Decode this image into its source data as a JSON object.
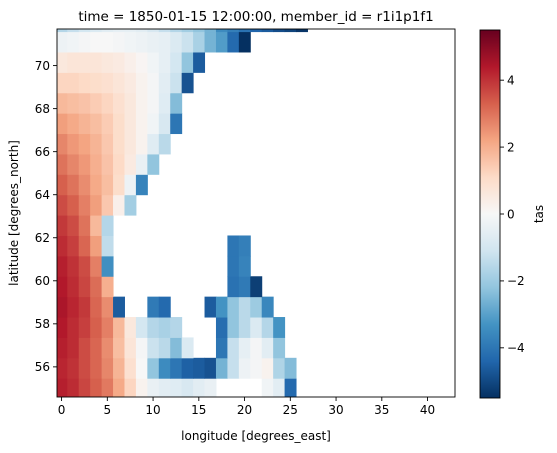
{
  "chart_data": {
    "type": "heatmap",
    "title": "time = 1850-01-15 12:00:00, member_id = r1i1p1f1",
    "xlabel": "longitude [degrees_east]",
    "ylabel": "latitude [degrees_north]",
    "colorbar_label": "tas",
    "colormap": "RdBu_r",
    "vmin": -5.5,
    "vmax": 5.5,
    "x_range": [
      -0.5,
      43.0
    ],
    "y_range": [
      54.6,
      71.7
    ],
    "x_ticks": [
      0,
      5,
      10,
      15,
      20,
      25,
      30,
      35,
      40
    ],
    "x_tick_labels": [
      "0",
      "5",
      "10",
      "15",
      "20",
      "25",
      "30",
      "35",
      "40"
    ],
    "y_ticks": [
      56,
      58,
      60,
      62,
      64,
      66,
      68,
      70
    ],
    "y_tick_labels": [
      "56",
      "58",
      "60",
      "62",
      "64",
      "66",
      "68",
      "70"
    ],
    "colorbar_ticks": [
      -4,
      -2,
      0,
      2,
      4
    ],
    "colorbar_tick_labels": [
      "−4",
      "−2",
      "0",
      "2",
      "4"
    ],
    "grid": false,
    "cell_width_deg": 1.25,
    "cell_height_deg": 0.9474,
    "lon_start": 0,
    "lat_start": 55.0,
    "rows": [
      [
        4.3,
        4.1,
        3.7,
        3.3,
        2.9,
        2.1,
        1.2,
        0.2,
        -0.4,
        -0.6,
        -0.7,
        -0.9,
        -0.6,
        -0.4,
        null,
        null,
        null,
        null,
        -0.2,
        -0.6,
        -4.3,
        null
      ],
      [
        4.2,
        4.0,
        3.6,
        3.2,
        2.7,
        1.9,
        0.9,
        0.0,
        -2.2,
        -3.5,
        -4.0,
        -4.5,
        -4.6,
        -4.8,
        -2.6,
        -1.3,
        -0.3,
        -0.1,
        0.2,
        -1.7,
        -2.4,
        null
      ],
      [
        4.3,
        4.1,
        3.6,
        3.2,
        2.6,
        1.7,
        0.7,
        -0.1,
        -1.2,
        -1.5,
        -2.4,
        -0.8,
        null,
        null,
        -4.0,
        -1.3,
        -0.5,
        -0.1,
        -0.6,
        -2.2,
        null,
        null
      ],
      [
        4.4,
        4.1,
        3.8,
        3.3,
        2.8,
        1.8,
        0.6,
        -1.0,
        -1.6,
        -1.8,
        -1.6,
        null,
        null,
        null,
        -4.2,
        -2.2,
        -1.5,
        -0.8,
        -1.6,
        -3.3,
        null,
        null
      ],
      [
        4.5,
        4.2,
        3.9,
        3.2,
        2.6,
        -4.6,
        null,
        null,
        -3.9,
        -4.3,
        null,
        null,
        null,
        -4.6,
        -3.3,
        -2.2,
        -1.5,
        -2.0,
        -3.6,
        null,
        null,
        null
      ],
      [
        4.4,
        4.1,
        3.7,
        3.1,
        2.0,
        null,
        null,
        null,
        null,
        null,
        null,
        null,
        null,
        null,
        null,
        -4.1,
        -3.9,
        -5.2,
        null,
        null,
        null,
        null
      ],
      [
        4.3,
        4.0,
        3.6,
        2.8,
        -3.4,
        null,
        null,
        null,
        null,
        null,
        null,
        null,
        null,
        null,
        null,
        -4.0,
        -3.7,
        null,
        null,
        null,
        null,
        null
      ],
      [
        4.1,
        3.8,
        3.2,
        2.3,
        -1.4,
        null,
        null,
        null,
        null,
        null,
        null,
        null,
        null,
        null,
        null,
        -4.0,
        -3.8,
        null,
        null,
        null,
        null,
        null
      ],
      [
        3.9,
        3.6,
        3.0,
        1.8,
        -1.6,
        null,
        null,
        null,
        null,
        null,
        null,
        null,
        null,
        null,
        null,
        null,
        null,
        null,
        null,
        null,
        null,
        null
      ],
      [
        3.6,
        3.3,
        2.8,
        2.3,
        1.5,
        0.3,
        -1.9,
        null,
        null,
        null,
        null,
        null,
        null,
        null,
        null,
        null,
        null,
        null,
        null,
        null,
        null,
        null
      ],
      [
        3.3,
        3.0,
        2.6,
        2.1,
        1.7,
        1.0,
        -0.3,
        -3.7,
        null,
        null,
        null,
        null,
        null,
        null,
        null,
        null,
        null,
        null,
        null,
        null,
        null,
        null
      ],
      [
        3.0,
        2.7,
        2.4,
        2.0,
        1.6,
        1.1,
        0.5,
        -0.4,
        -2.2,
        null,
        null,
        null,
        null,
        null,
        null,
        null,
        null,
        null,
        null,
        null,
        null,
        null
      ],
      [
        2.7,
        2.4,
        2.2,
        1.9,
        1.5,
        1.0,
        0.6,
        0.2,
        -0.7,
        -1.5,
        null,
        null,
        null,
        null,
        null,
        null,
        null,
        null,
        null,
        null,
        null,
        null
      ],
      [
        2.3,
        2.1,
        1.9,
        1.7,
        1.4,
        1.0,
        0.6,
        0.2,
        -0.2,
        -0.9,
        -4.0,
        null,
        null,
        null,
        null,
        null,
        null,
        null,
        null,
        null,
        null,
        null
      ],
      [
        1.8,
        1.7,
        1.6,
        1.4,
        1.2,
        0.9,
        0.6,
        0.2,
        -0.1,
        -0.7,
        -2.4,
        null,
        null,
        null,
        null,
        null,
        null,
        null,
        null,
        null,
        null,
        null
      ],
      [
        1.2,
        1.2,
        1.1,
        1.0,
        0.9,
        0.7,
        0.5,
        0.2,
        -0.1,
        -0.6,
        -1.2,
        -4.8,
        null,
        null,
        null,
        null,
        null,
        null,
        null,
        null,
        null,
        null
      ],
      [
        0.6,
        0.7,
        0.7,
        0.7,
        0.6,
        0.5,
        0.3,
        0.1,
        -0.2,
        -0.5,
        -1.0,
        -2.2,
        -4.6,
        null,
        null,
        null,
        null,
        null,
        null,
        null,
        null,
        null
      ],
      [
        -0.3,
        -0.2,
        -0.1,
        0.0,
        0.0,
        -0.1,
        -0.2,
        -0.3,
        -0.4,
        -0.5,
        -0.8,
        -1.2,
        -1.8,
        -2.6,
        -3.1,
        -4.3,
        -5.5,
        null,
        null,
        null,
        null,
        null
      ],
      [
        -1.6,
        -1.3,
        -1.0,
        -0.8,
        -0.6,
        -0.5,
        -0.5,
        -0.6,
        -0.9,
        -1.3,
        -1.6,
        -1.9,
        -2.2,
        -2.6,
        -3.5,
        -3.8,
        -4.1,
        -4.4,
        -4.6,
        -4.9,
        -5.1,
        -5.4
      ]
    ]
  }
}
